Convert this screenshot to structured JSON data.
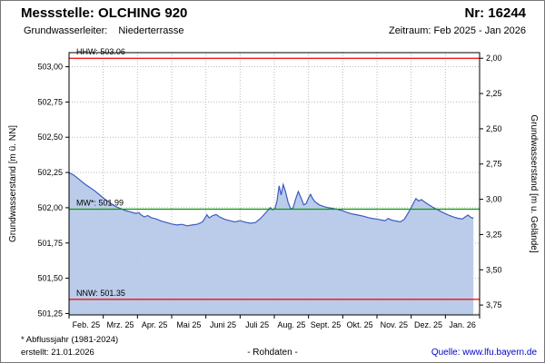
{
  "header": {
    "station_title": "Messstelle: OLCHING 920",
    "station_number": "Nr: 16244",
    "aquifer_label": "Grundwasserleiter:",
    "aquifer_value": "Niederterrasse",
    "period": "Zeitraum: Feb 2025 - Jan 2026"
  },
  "footer": {
    "note": "* Abflussjahr (1981-2024)",
    "created": "erstellt: 21.01.2026",
    "center": "- Rohdaten -",
    "source": "Quelle: www.lfu.bayern.de"
  },
  "chart_data": {
    "type": "area",
    "title": "",
    "x_axis": {
      "span_months": 12,
      "tick_labels": [
        "Feb. 25",
        "Mrz. 25",
        "Apr. 25",
        "Mai 25",
        "Juni 25",
        "Juli 25",
        "Aug. 25",
        "Sept. 25",
        "Okt. 25",
        "Nov. 25",
        "Dez. 25",
        "Jan. 26"
      ]
    },
    "y_axis_left": {
      "title": "Grundwasserstand [m ü. NN]",
      "min": 501.24,
      "max": 503.1,
      "tick_values": [
        501.25,
        501.5,
        501.75,
        502.0,
        502.25,
        502.5,
        502.75,
        503.0
      ],
      "tick_labels": [
        "501,25",
        "501,50",
        "501,75",
        "502,00",
        "502,25",
        "502,50",
        "502,75",
        "503,00"
      ]
    },
    "y_axis_right": {
      "title": "Grundwasserstand [m u. Gelände]",
      "ground_elevation": 505.06,
      "tick_values": [
        2.0,
        2.25,
        2.5,
        2.75,
        3.0,
        3.25,
        3.5,
        3.75
      ],
      "tick_labels": [
        "2,00",
        "2,25",
        "2,50",
        "2,75",
        "3,00",
        "3,25",
        "3,50",
        "3,75"
      ]
    },
    "reference_lines": [
      {
        "name": "HHW",
        "label": "HHW: 503.06",
        "value": 503.06,
        "color": "#ee0000"
      },
      {
        "name": "MW",
        "label": "MW*: 501.99",
        "value": 501.99,
        "color": "#00a000"
      },
      {
        "name": "NNW",
        "label": "NNW: 501.35",
        "value": 501.35,
        "color": "#ee0000"
      }
    ],
    "series": [
      {
        "name": "Rohdaten",
        "x": [
          0,
          0.15,
          0.3,
          0.45,
          0.6,
          0.75,
          0.9,
          1.05,
          1.2,
          1.35,
          1.5,
          1.65,
          1.8,
          1.95,
          2.05,
          2.1,
          2.2,
          2.3,
          2.4,
          2.55,
          2.7,
          2.85,
          3,
          3.15,
          3.3,
          3.45,
          3.6,
          3.75,
          3.9,
          3.97,
          4.03,
          4.1,
          4.2,
          4.3,
          4.4,
          4.55,
          4.7,
          4.85,
          5,
          5.15,
          5.3,
          5.45,
          5.6,
          5.75,
          5.88,
          5.95,
          6.02,
          6.08,
          6.14,
          6.2,
          6.26,
          6.32,
          6.4,
          6.48,
          6.55,
          6.62,
          6.7,
          6.78,
          6.86,
          6.93,
          7,
          7.06,
          7.12,
          7.2,
          7.32,
          7.45,
          7.58,
          7.72,
          7.86,
          8,
          8.15,
          8.3,
          8.45,
          8.6,
          8.75,
          8.9,
          9,
          9.12,
          9.24,
          9.33,
          9.42,
          9.55,
          9.68,
          9.8,
          9.9,
          10,
          10.07,
          10.14,
          10.22,
          10.3,
          10.4,
          10.52,
          10.64,
          10.76,
          10.88,
          11,
          11.12,
          11.25,
          11.38,
          11.5,
          11.58,
          11.66,
          11.74,
          11.82
        ],
        "y": [
          502.25,
          502.23,
          502.2,
          502.17,
          502.145,
          502.12,
          502.09,
          502.06,
          502.035,
          502.01,
          501.995,
          501.98,
          501.97,
          501.96,
          501.965,
          501.95,
          501.935,
          501.945,
          501.93,
          501.92,
          501.905,
          501.895,
          501.885,
          501.878,
          501.882,
          501.872,
          501.878,
          501.883,
          501.9,
          501.925,
          501.95,
          501.928,
          501.945,
          501.952,
          501.935,
          501.918,
          501.908,
          501.9,
          501.908,
          501.898,
          501.89,
          501.895,
          501.925,
          501.965,
          502.0,
          501.985,
          501.995,
          502.05,
          502.155,
          502.09,
          502.165,
          502.12,
          502.04,
          501.99,
          502.0,
          502.06,
          502.115,
          502.07,
          502.02,
          502.03,
          502.07,
          502.095,
          502.065,
          502.04,
          502.02,
          502.008,
          502.0,
          501.995,
          501.988,
          501.978,
          501.965,
          501.955,
          501.948,
          501.94,
          501.93,
          501.922,
          501.92,
          501.913,
          501.908,
          501.924,
          501.913,
          501.906,
          501.9,
          501.918,
          501.958,
          502.0,
          502.035,
          502.065,
          502.048,
          502.058,
          502.04,
          502.02,
          502.002,
          501.988,
          501.972,
          501.958,
          501.945,
          501.933,
          501.925,
          501.92,
          501.935,
          501.948,
          501.932,
          501.925
        ]
      }
    ],
    "colors": {
      "line": "#3c5bc0",
      "fill": "#b5c8e8",
      "grid": "#b9b9b9"
    }
  }
}
